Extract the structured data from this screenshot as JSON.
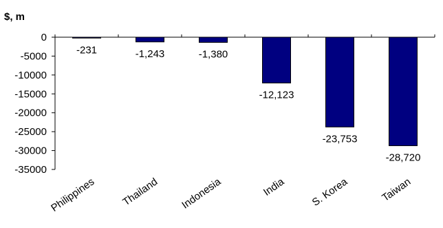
{
  "chart_data": {
    "type": "bar",
    "title": "",
    "ylabel": "$, m",
    "xlabel": "",
    "categories": [
      "Philippines",
      "Thailand",
      "Indonesia",
      "India",
      "S. Korea",
      "Taiwan"
    ],
    "values": [
      -231,
      -1243,
      -1380,
      -12123,
      -23753,
      -28720
    ],
    "value_labels": [
      "-231",
      "-1,243",
      "-1,380",
      "-12,123",
      "-23,753",
      "-28,720"
    ],
    "ylim": [
      -35000,
      0
    ],
    "yticks": [
      0,
      -5000,
      -10000,
      -15000,
      -20000,
      -25000,
      -30000,
      -35000
    ],
    "bar_color": "#000080",
    "grid": false,
    "legend": "none"
  }
}
